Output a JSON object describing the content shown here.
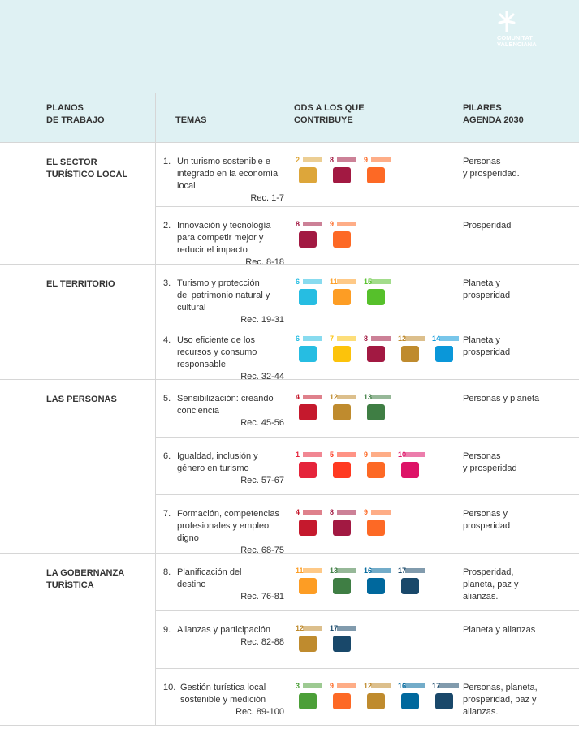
{
  "header": {
    "logo": [
      "COMUNITAT",
      "VALENCIANA"
    ]
  },
  "columns": [
    [
      "PLANOS",
      "DE TRABAJO"
    ],
    [
      "TEMAS"
    ],
    [
      "ODS A LOS QUE",
      "CONTRIBUYE"
    ],
    [
      "PILARES",
      "AGENDA 2030"
    ]
  ],
  "sections": [
    {
      "title": [
        "EL SECTOR",
        "TURÍSTICO LOCAL"
      ],
      "themes": [
        {
          "number": "1.",
          "text": [
            "Un turismo sostenible e",
            "integrado en la economía",
            "local"
          ],
          "rec": "Rec. 1-7",
          "sdgs": [
            {
              "number": "2",
              "color": "#dda63a"
            },
            {
              "number": "8",
              "color": "#a21942"
            },
            {
              "number": "9",
              "color": "#fd6925"
            }
          ],
          "pillar": [
            "Personas",
            "y prosperidad."
          ]
        },
        {
          "number": "2.",
          "text": [
            "Innovación y tecnología",
            "para competir mejor y",
            "reducir el impacto"
          ],
          "rec": "Rec. 8-18",
          "sdgs": [
            {
              "number": "8",
              "color": "#a21942"
            },
            {
              "number": "9",
              "color": "#fd6925"
            }
          ],
          "pillar": [
            "Prosperidad"
          ]
        }
      ]
    },
    {
      "title": [
        "EL TERRITORIO"
      ],
      "themes": [
        {
          "number": "3.",
          "text": [
            "Turismo y protección",
            "del patrimonio natural y",
            "cultural"
          ],
          "rec": "Rec. 19-31",
          "sdgs": [
            {
              "number": "6",
              "color": "#26bde2"
            },
            {
              "number": "11",
              "color": "#fd9d24"
            },
            {
              "number": "15",
              "color": "#56c02b"
            }
          ],
          "pillar": [
            "Planeta y",
            "prosperidad"
          ]
        },
        {
          "number": "4.",
          "text": [
            "Uso eficiente de los",
            "recursos y consumo",
            "responsable"
          ],
          "rec": "Rec. 32-44",
          "sdgs": [
            {
              "number": "6",
              "color": "#26bde2"
            },
            {
              "number": "7",
              "color": "#fcc30b"
            },
            {
              "number": "8",
              "color": "#a21942"
            },
            {
              "number": "12",
              "color": "#bf8b2e"
            },
            {
              "number": "14",
              "color": "#0a97d9"
            }
          ],
          "pillar": [
            "Planeta y",
            "prosperidad"
          ]
        }
      ]
    },
    {
      "title": [
        "LAS PERSONAS"
      ],
      "themes": [
        {
          "number": "5.",
          "text": [
            "Sensibilización: creando",
            "conciencia"
          ],
          "rec": "Rec. 45-56",
          "sdgs": [
            {
              "number": "4",
              "color": "#c5192d"
            },
            {
              "number": "12",
              "color": "#bf8b2e"
            },
            {
              "number": "13",
              "color": "#3f7e44"
            }
          ],
          "pillar": [
            "Personas y planeta"
          ]
        },
        {
          "number": "6.",
          "text": [
            "Igualdad, inclusión y",
            "género en turismo"
          ],
          "rec": "Rec. 57-67",
          "sdgs": [
            {
              "number": "1",
              "color": "#e5243b"
            },
            {
              "number": "5",
              "color": "#ff3a21"
            },
            {
              "number": "9",
              "color": "#fd6925"
            },
            {
              "number": "10",
              "color": "#dd1367"
            }
          ],
          "pillar": [
            "Personas",
            "y prosperidad"
          ]
        },
        {
          "number": "7.",
          "text": [
            "Formación, competencias",
            "profesionales y empleo",
            "digno"
          ],
          "rec": "Rec. 68-75",
          "sdgs": [
            {
              "number": "4",
              "color": "#c5192d"
            },
            {
              "number": "8",
              "color": "#a21942"
            },
            {
              "number": "9",
              "color": "#fd6925"
            }
          ],
          "pillar": [
            "Personas y",
            "prosperidad"
          ]
        }
      ]
    },
    {
      "title": [
        "LA GOBERNANZA",
        "TURÍSTICA"
      ],
      "themes": [
        {
          "number": "8.",
          "text": [
            "Planificación del",
            "destino"
          ],
          "rec": "Rec. 76-81",
          "sdgs": [
            {
              "number": "11",
              "color": "#fd9d24"
            },
            {
              "number": "13",
              "color": "#3f7e44"
            },
            {
              "number": "16",
              "color": "#00689d"
            },
            {
              "number": "17",
              "color": "#19486a"
            }
          ],
          "pillar": [
            "Prosperidad,",
            "planeta, paz y",
            "alianzas."
          ]
        },
        {
          "number": "9.",
          "text": [
            "Alianzas y participación"
          ],
          "rec": "Rec. 82-88",
          "sdgs": [
            {
              "number": "12",
              "color": "#bf8b2e"
            },
            {
              "number": "17",
              "color": "#19486a"
            }
          ],
          "pillar": [
            "Planeta y alianzas"
          ]
        },
        {
          "number": "10.",
          "text": [
            "Gestión turística local",
            "sostenible y medición"
          ],
          "rec": "Rec. 89-100",
          "sdgs": [
            {
              "number": "3",
              "color": "#4c9f38"
            },
            {
              "number": "9",
              "color": "#fd6925"
            },
            {
              "number": "12",
              "color": "#bf8b2e"
            },
            {
              "number": "16",
              "color": "#00689d"
            },
            {
              "number": "17",
              "color": "#19486a"
            }
          ],
          "pillar": [
            "Personas, planeta,",
            "prosperidad, paz y",
            "alianzas."
          ]
        }
      ]
    }
  ]
}
